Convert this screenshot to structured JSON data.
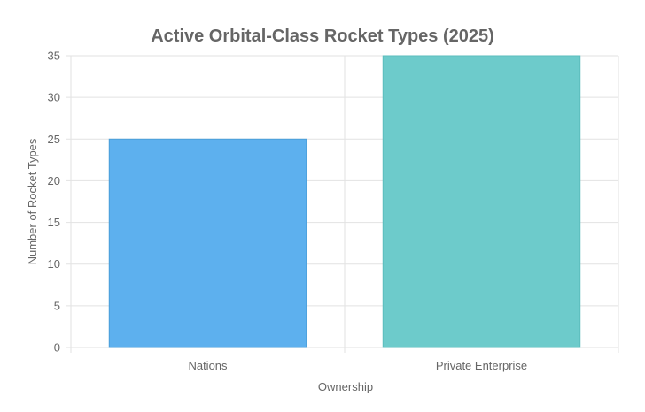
{
  "chart_data": {
    "type": "bar",
    "title": "Active Orbital-Class Rocket Types (2025)",
    "xlabel": "Ownership",
    "ylabel": "Number of Rocket Types",
    "categories": [
      "Nations",
      "Private Enterprise"
    ],
    "values": [
      25,
      35
    ],
    "ylim": [
      0,
      35
    ],
    "yticks": [
      0,
      5,
      10,
      15,
      20,
      25,
      30,
      35
    ],
    "grid": true,
    "legend": "none",
    "colors": {
      "bars": [
        "#5DB0EE",
        "#6DCBCB"
      ],
      "bar_borders": [
        "#4A9ED8",
        "#5BBDBD"
      ],
      "grid": "#E2E2E2",
      "text": "#666666"
    }
  }
}
